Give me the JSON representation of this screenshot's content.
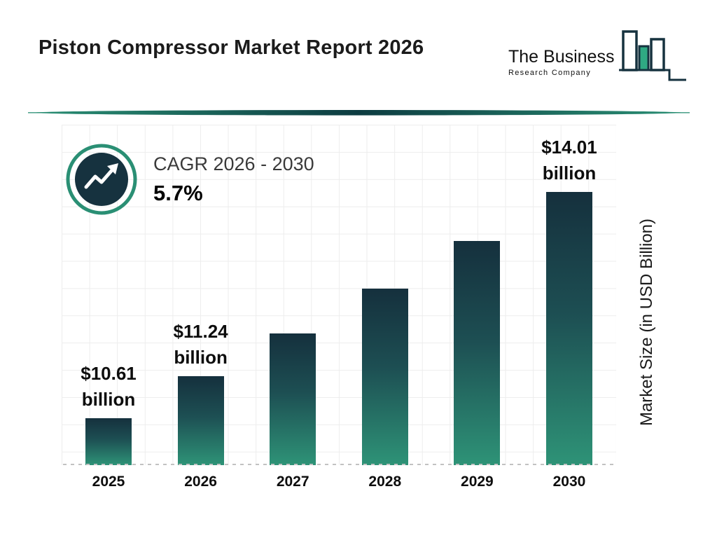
{
  "header": {
    "title": "Piston Compressor Market Report 2026",
    "logo": {
      "line1": "The Business",
      "line2": "Research Company"
    }
  },
  "cagr": {
    "label": "CAGR 2026 - 2030",
    "value": "5.7%"
  },
  "chart_data": {
    "type": "bar",
    "title": "Piston Compressor Market Report 2026",
    "categories": [
      "2025",
      "2026",
      "2027",
      "2028",
      "2029",
      "2030"
    ],
    "values": [
      10.61,
      11.24,
      11.88,
      12.56,
      13.27,
      14.01
    ],
    "unit": "USD Billion",
    "ylabel": "Market Size (in USD Billion)",
    "xlabel": "",
    "ylim": [
      9.9,
      14.01
    ],
    "grid": "on",
    "cagr_note": "CAGR 2026 - 2030: 5.7%",
    "value_labels": [
      {
        "line1": "$10.61",
        "line2": "billion"
      },
      {
        "line1": "$11.24",
        "line2": "billion"
      },
      null,
      null,
      null,
      {
        "line1": "$14.01",
        "line2": "billion"
      }
    ],
    "colors": {
      "bar_gradient_top": "#15303d",
      "bar_gradient_mid": "#1d4f53",
      "bar_gradient_bottom": "#2e9377",
      "accent_teal": "#2a8f74",
      "badge_navy": "#16323f"
    }
  }
}
